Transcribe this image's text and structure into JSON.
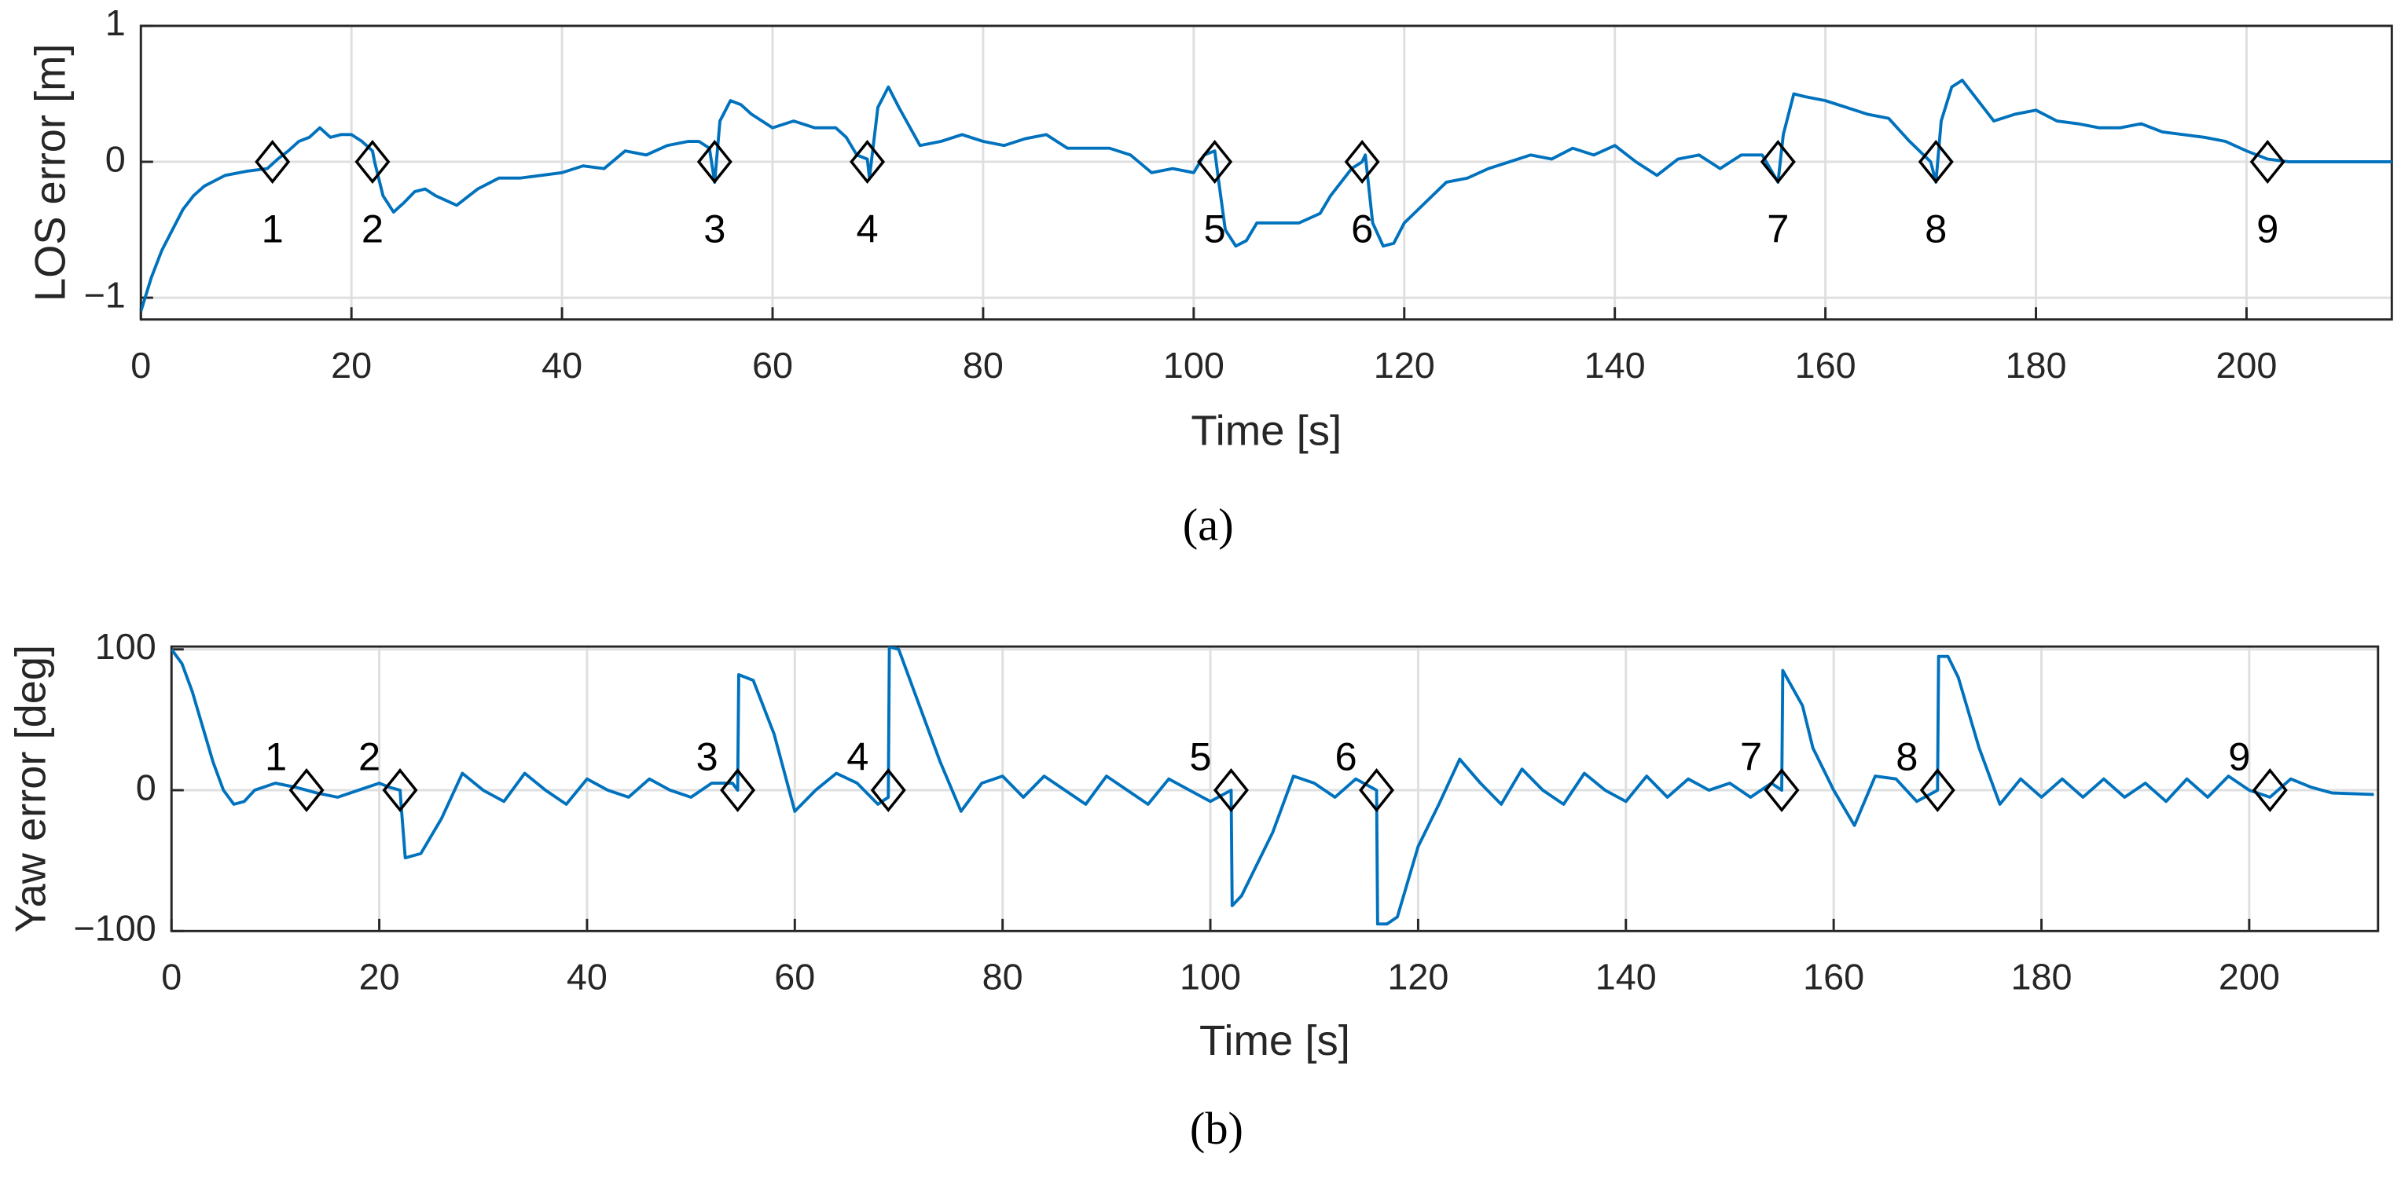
{
  "chart_data": [
    {
      "type": "line",
      "caption": "(a)",
      "x_label": "Time [s]",
      "y_label": "LOS error [m]",
      "xlim": [
        0,
        213.8
      ],
      "ylim": [
        -1.16,
        1
      ],
      "xticks": [
        0,
        20,
        40,
        60,
        80,
        100,
        120,
        140,
        160,
        180,
        200
      ],
      "yticks": [
        {
          "value": -1,
          "label": "−1"
        },
        0,
        1
      ],
      "grid": true,
      "x": [
        0,
        1,
        2,
        3,
        4,
        5,
        6,
        8,
        10,
        12,
        13,
        14,
        15,
        16,
        17,
        18,
        19,
        20,
        21,
        22,
        22.2,
        23,
        24,
        25,
        26,
        27,
        28,
        30,
        32,
        34,
        36,
        38,
        40,
        42,
        44,
        46,
        48,
        50,
        52,
        53,
        54,
        54.5,
        55,
        56,
        57,
        58,
        60,
        62,
        64,
        66,
        67,
        68,
        69,
        69.2,
        70,
        71,
        72,
        74,
        76,
        78,
        80,
        82,
        84,
        86,
        88,
        90,
        92,
        94,
        96,
        98,
        100,
        101,
        102,
        102.3,
        103,
        104,
        105,
        106,
        108,
        110,
        112,
        113,
        114,
        115,
        116,
        116.3,
        117,
        118,
        119,
        120,
        122,
        124,
        126,
        128,
        130,
        132,
        134,
        136,
        138,
        140,
        142,
        144,
        146,
        148,
        150,
        152,
        154,
        155.5,
        156,
        157,
        158,
        160,
        162,
        164,
        166,
        168,
        170,
        170.5,
        171,
        172,
        173,
        174,
        176,
        178,
        180,
        182,
        184,
        186,
        188,
        190,
        192,
        194,
        196,
        198,
        200,
        202,
        204,
        213.8
      ],
      "series": [
        {
          "color": "#0072bd",
          "values": [
            -1.1,
            -0.85,
            -0.65,
            -0.5,
            -0.35,
            -0.25,
            -0.18,
            -0.1,
            -0.07,
            -0.05,
            0.02,
            0.08,
            0.15,
            0.18,
            0.25,
            0.18,
            0.2,
            0.2,
            0.15,
            0.08,
            0.0,
            -0.25,
            -0.37,
            -0.3,
            -0.22,
            -0.2,
            -0.25,
            -0.32,
            -0.2,
            -0.12,
            -0.12,
            -0.1,
            -0.08,
            -0.03,
            -0.05,
            0.08,
            0.05,
            0.12,
            0.15,
            0.15,
            0.1,
            -0.15,
            0.3,
            0.45,
            0.42,
            0.35,
            0.25,
            0.3,
            0.25,
            0.25,
            0.18,
            0.05,
            0.02,
            -0.12,
            0.4,
            0.55,
            0.4,
            0.12,
            0.15,
            0.2,
            0.15,
            0.12,
            0.17,
            0.2,
            0.1,
            0.1,
            0.1,
            0.05,
            -0.08,
            -0.05,
            -0.08,
            0.05,
            0.08,
            -0.1,
            -0.5,
            -0.62,
            -0.58,
            -0.45,
            -0.45,
            -0.45,
            -0.38,
            -0.25,
            -0.15,
            -0.05,
            0.0,
            0.05,
            -0.45,
            -0.62,
            -0.6,
            -0.45,
            -0.3,
            -0.15,
            -0.12,
            -0.05,
            0.0,
            0.05,
            0.02,
            0.1,
            0.05,
            0.12,
            0.0,
            -0.1,
            0.02,
            0.05,
            -0.05,
            0.05,
            0.05,
            -0.15,
            0.2,
            0.5,
            0.48,
            0.45,
            0.4,
            0.35,
            0.32,
            0.15,
            0.0,
            -0.15,
            0.3,
            0.55,
            0.6,
            0.5,
            0.3,
            0.35,
            0.38,
            0.3,
            0.28,
            0.25,
            0.25,
            0.28,
            0.22,
            0.2,
            0.18,
            0.15,
            0.08,
            0.02,
            0,
            0
          ]
        }
      ],
      "annotations": [
        {
          "x": 12.5,
          "y": 0,
          "label": "1"
        },
        {
          "x": 22,
          "y": 0,
          "label": "2"
        },
        {
          "x": 54.5,
          "y": 0,
          "label": "3"
        },
        {
          "x": 69,
          "y": 0,
          "label": "4"
        },
        {
          "x": 102,
          "y": 0,
          "label": "5"
        },
        {
          "x": 116,
          "y": 0,
          "label": "6"
        },
        {
          "x": 155.5,
          "y": 0,
          "label": "7"
        },
        {
          "x": 170.5,
          "y": 0,
          "label": "8"
        },
        {
          "x": 202,
          "y": 0,
          "label": "9"
        }
      ]
    },
    {
      "type": "line",
      "caption": "(b)",
      "x_label": "Time [s]",
      "y_label": "Yaw error [deg]",
      "xlim": [
        0,
        212.4
      ],
      "ylim": [
        -100,
        102
      ],
      "xticks": [
        0,
        20,
        40,
        60,
        80,
        100,
        120,
        140,
        160,
        180,
        200
      ],
      "yticks": [
        {
          "value": -100,
          "label": "−100"
        },
        0,
        100
      ],
      "grid": true,
      "x": [
        0,
        1,
        2,
        3,
        4,
        5,
        6,
        7,
        8,
        10,
        12,
        14,
        16,
        18,
        20,
        21,
        22,
        22.1,
        22.5,
        24,
        26,
        28,
        30,
        32,
        34,
        36,
        38,
        40,
        42,
        44,
        46,
        48,
        50,
        52,
        54,
        54.5,
        54.6,
        56,
        58,
        60,
        62,
        64,
        66,
        68,
        69,
        69.1,
        70,
        72,
        74,
        76,
        78,
        80,
        82,
        84,
        86,
        88,
        90,
        92,
        94,
        96,
        98,
        100,
        102,
        102.1,
        103,
        106,
        108,
        110,
        112,
        114,
        116,
        116.1,
        117,
        118,
        120,
        122,
        124,
        126,
        128,
        130,
        132,
        134,
        136,
        138,
        140,
        142,
        144,
        146,
        148,
        150,
        152,
        154,
        155,
        155.1,
        157,
        158,
        160,
        162,
        164,
        166,
        168,
        170,
        170.1,
        171,
        172,
        174,
        176,
        178,
        180,
        182,
        184,
        186,
        188,
        190,
        192,
        194,
        196,
        198,
        200,
        202,
        204,
        206,
        208,
        212
      ],
      "series": [
        {
          "color": "#0072bd",
          "values": [
            100,
            90,
            70,
            45,
            20,
            0,
            -10,
            -8,
            0,
            5,
            2,
            -2,
            -5,
            0,
            5,
            2,
            0,
            -10,
            -48,
            -45,
            -20,
            12,
            0,
            -8,
            12,
            0,
            -10,
            8,
            0,
            -5,
            8,
            0,
            -5,
            5,
            5,
            0,
            82,
            78,
            40,
            -15,
            0,
            12,
            5,
            -10,
            -5,
            102,
            100,
            60,
            20,
            -15,
            5,
            10,
            -5,
            10,
            0,
            -10,
            10,
            0,
            -10,
            8,
            0,
            -8,
            0,
            -82,
            -75,
            -30,
            10,
            5,
            -5,
            8,
            0,
            -95,
            -95,
            -90,
            -40,
            -10,
            22,
            5,
            -10,
            15,
            0,
            -10,
            12,
            0,
            -8,
            10,
            -5,
            8,
            0,
            5,
            -5,
            5,
            0,
            85,
            60,
            30,
            0,
            -25,
            10,
            8,
            -8,
            0,
            95,
            95,
            80,
            30,
            -10,
            8,
            -5,
            8,
            -5,
            8,
            -5,
            5,
            -8,
            8,
            -5,
            10,
            0,
            -5,
            8,
            2,
            -2,
            -3
          ]
        }
      ],
      "annotations": [
        {
          "x": 13,
          "y": 0,
          "label": "1"
        },
        {
          "x": 22,
          "y": 0,
          "label": "2"
        },
        {
          "x": 54.5,
          "y": 0,
          "label": "3"
        },
        {
          "x": 69,
          "y": 0,
          "label": "4"
        },
        {
          "x": 102,
          "y": 0,
          "label": "5"
        },
        {
          "x": 116,
          "y": 0,
          "label": "6"
        },
        {
          "x": 155,
          "y": 0,
          "label": "7"
        },
        {
          "x": 170,
          "y": 0,
          "label": "8"
        },
        {
          "x": 202,
          "y": 0,
          "label": "9"
        }
      ]
    }
  ]
}
